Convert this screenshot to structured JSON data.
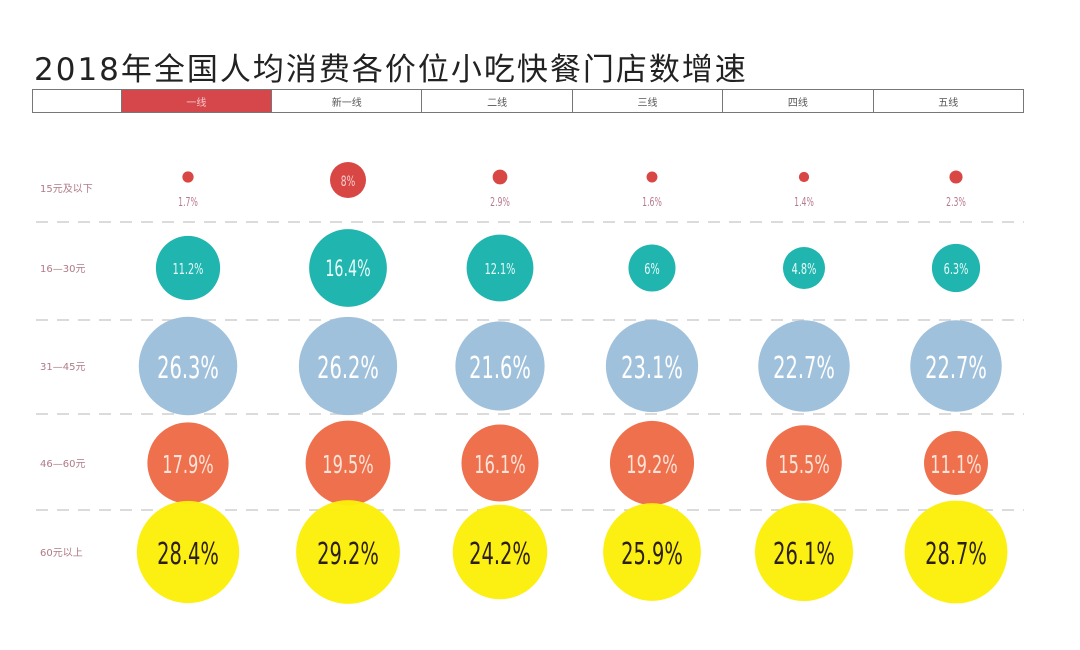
{
  "chart_data": {
    "type": "bubble-matrix",
    "title": "2018年全国人均消费各价位小吃快餐门店数增速",
    "columns": [
      "一线",
      "新一线",
      "二线",
      "三线",
      "四线",
      "五线"
    ],
    "active_column": "一线",
    "rows": [
      "15元及以下",
      "16—30元",
      "31—45元",
      "46—60元",
      "60元以上"
    ],
    "series": [
      {
        "name": "15元及以下",
        "color": "#d8413f",
        "values": [
          1.7,
          8,
          2.9,
          1.6,
          1.4,
          2.3
        ],
        "labels": [
          "1.7%",
          "8%",
          "2.9%",
          "1.6%",
          "1.4%",
          "2.3%"
        ]
      },
      {
        "name": "16—30元",
        "color": "#19b3ab",
        "values": [
          11.2,
          16.4,
          12.1,
          6,
          4.8,
          6.3
        ],
        "labels": [
          "11.2%",
          "16.4%",
          "12.1%",
          "6%",
          "4.8%",
          "6.3%"
        ]
      },
      {
        "name": "31—45元",
        "color": "#9dbfdb",
        "values": [
          26.3,
          26.2,
          21.6,
          23.1,
          22.7,
          22.7
        ],
        "labels": [
          "26.3%",
          "26.2%",
          "21.6%",
          "23.1%",
          "22.7%",
          "22.7%"
        ]
      },
      {
        "name": "46—60元",
        "color": "#ed6540",
        "values": [
          17.9,
          19.5,
          16.1,
          19.2,
          15.5,
          11.1
        ],
        "labels": [
          "17.9%",
          "19.5%",
          "16.1%",
          "19.2%",
          "15.5%",
          "11.1%"
        ]
      },
      {
        "name": "60元以上",
        "color": "#fcee0a",
        "values": [
          28.4,
          29.2,
          24.2,
          25.9,
          26.1,
          28.7
        ],
        "labels": [
          "28.4%",
          "29.2%",
          "24.2%",
          "25.9%",
          "26.1%",
          "28.7%"
        ]
      }
    ],
    "header_active_color": "#d5474b",
    "label_color": "#b07a86"
  }
}
